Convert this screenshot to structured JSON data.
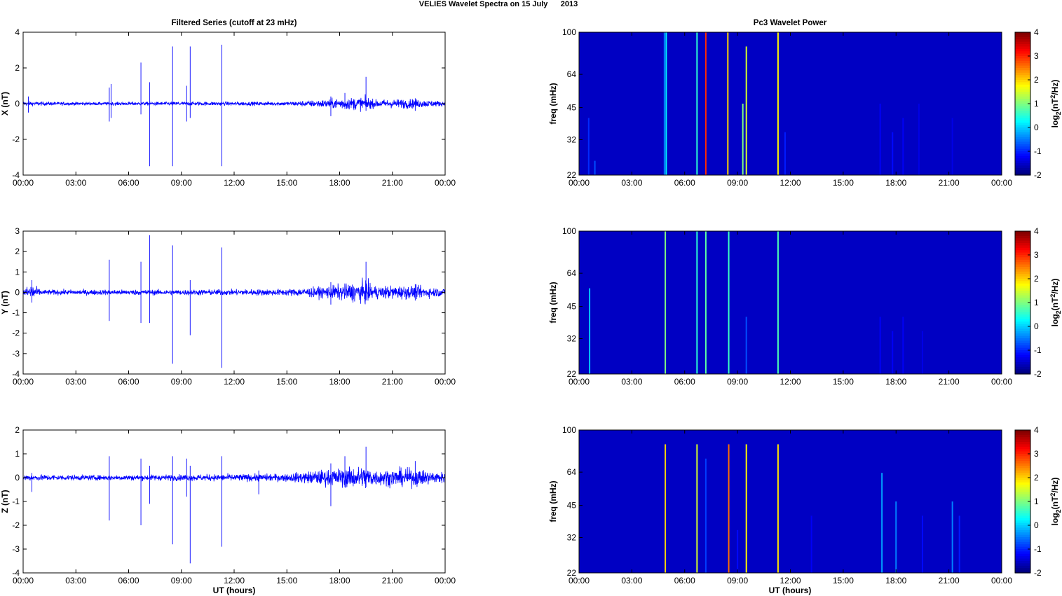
{
  "figure": {
    "title": "VELIES Wavelet Spectra on 15 July      2013",
    "left_title": "Filtered Series (cutoff at 23 mHz)",
    "right_title": "Pc3 Wavelet Power",
    "xlabel": "UT (hours)"
  },
  "chart_data": [
    {
      "type": "line",
      "ylabel": "X (nT)",
      "xlim": [
        0,
        24
      ],
      "ylim": [
        -4,
        4
      ],
      "yticks": [
        -4,
        -2,
        0,
        2,
        4
      ],
      "xticks": [
        "00:00",
        "03:00",
        "06:00",
        "09:00",
        "12:00",
        "15:00",
        "18:00",
        "21:00",
        "00:00"
      ],
      "series_color": "#0000ff",
      "noise_envelope": [
        [
          0,
          0.12
        ],
        [
          1,
          0.1
        ],
        [
          4,
          0.08
        ],
        [
          9,
          0.1
        ],
        [
          15,
          0.1
        ],
        [
          17,
          0.2
        ],
        [
          18,
          0.28
        ],
        [
          19.5,
          0.35
        ],
        [
          20,
          0.2
        ],
        [
          22,
          0.25
        ],
        [
          23,
          0.18
        ],
        [
          24,
          0.12
        ]
      ],
      "spikes": [
        [
          0.3,
          0.4,
          -0.5
        ],
        [
          4.9,
          0.9,
          -1.0
        ],
        [
          5.0,
          1.1,
          -0.8
        ],
        [
          6.7,
          2.3,
          -0.6
        ],
        [
          7.2,
          1.2,
          -3.5
        ],
        [
          8.5,
          3.2,
          -3.5
        ],
        [
          9.3,
          1.0,
          -1.0
        ],
        [
          9.5,
          3.2,
          -0.8
        ],
        [
          11.3,
          3.3,
          -3.5
        ],
        [
          17.5,
          0.4,
          -0.7
        ],
        [
          18.3,
          0.6,
          -0.3
        ],
        [
          19.5,
          1.5,
          -0.4
        ],
        [
          22.3,
          0.3,
          -0.4
        ]
      ]
    },
    {
      "type": "line",
      "ylabel": "Y (nT)",
      "xlim": [
        0,
        24
      ],
      "ylim": [
        -4,
        3
      ],
      "yticks": [
        -4,
        -3,
        -2,
        -1,
        0,
        1,
        2,
        3
      ],
      "xticks": [
        "00:00",
        "03:00",
        "06:00",
        "09:00",
        "12:00",
        "15:00",
        "18:00",
        "21:00",
        "00:00"
      ],
      "series_color": "#0000ff",
      "noise_envelope": [
        [
          0,
          0.15
        ],
        [
          0.5,
          0.4
        ],
        [
          1,
          0.12
        ],
        [
          9,
          0.12
        ],
        [
          15,
          0.15
        ],
        [
          17,
          0.25
        ],
        [
          18,
          0.35
        ],
        [
          19.5,
          0.5
        ],
        [
          20,
          0.3
        ],
        [
          22,
          0.3
        ],
        [
          24,
          0.18
        ]
      ],
      "spikes": [
        [
          0.5,
          0.6,
          -0.5
        ],
        [
          4.9,
          1.6,
          -1.4
        ],
        [
          6.7,
          1.5,
          -1.5
        ],
        [
          7.2,
          2.8,
          -1.5
        ],
        [
          8.5,
          2.3,
          -3.5
        ],
        [
          9.5,
          0.6,
          -2.1
        ],
        [
          11.3,
          2.2,
          -3.7
        ],
        [
          17.5,
          0.5,
          -0.6
        ],
        [
          19.5,
          1.5,
          -0.4
        ],
        [
          22.3,
          0.4,
          -0.4
        ]
      ]
    },
    {
      "type": "line",
      "ylabel": "Z (nT)",
      "xlim": [
        0,
        24
      ],
      "ylim": [
        -4,
        2
      ],
      "yticks": [
        -4,
        -3,
        -2,
        -1,
        0,
        1,
        2
      ],
      "xticks": [
        "00:00",
        "03:00",
        "06:00",
        "09:00",
        "12:00",
        "15:00",
        "18:00",
        "21:00",
        "00:00"
      ],
      "series_color": "#0000ff",
      "noise_envelope": [
        [
          0,
          0.12
        ],
        [
          4,
          0.1
        ],
        [
          9,
          0.12
        ],
        [
          15,
          0.15
        ],
        [
          17,
          0.3
        ],
        [
          18,
          0.35
        ],
        [
          19.5,
          0.45
        ],
        [
          20,
          0.3
        ],
        [
          22,
          0.35
        ],
        [
          24,
          0.2
        ]
      ],
      "spikes": [
        [
          0.5,
          0.2,
          -0.6
        ],
        [
          4.9,
          0.9,
          -1.8
        ],
        [
          6.7,
          0.8,
          -2.0
        ],
        [
          7.2,
          0.5,
          -1.1
        ],
        [
          8.5,
          0.9,
          -2.8
        ],
        [
          9.3,
          0.8,
          -0.8
        ],
        [
          9.5,
          0.5,
          -3.6
        ],
        [
          11.3,
          0.9,
          -2.9
        ],
        [
          13.4,
          0.3,
          -0.7
        ],
        [
          17.5,
          0.6,
          -1.2
        ],
        [
          18.3,
          0.9,
          -0.4
        ],
        [
          19.5,
          1.3,
          -0.4
        ],
        [
          22.3,
          0.7,
          -0.3
        ]
      ]
    },
    {
      "type": "heatmap",
      "ylabel": "freq (mHz)",
      "xlim": [
        0,
        24
      ],
      "ylim": [
        22,
        100
      ],
      "yscale": "log",
      "yticks": [
        22,
        32,
        45,
        64,
        100
      ],
      "xticks": [
        "00:00",
        "03:00",
        "06:00",
        "09:00",
        "12:00",
        "15:00",
        "18:00",
        "21:00",
        "00:00"
      ],
      "colorbar": {
        "label": "log2(nT^2/Hz)",
        "ticks": [
          -2,
          -1,
          0,
          1,
          2,
          3,
          4
        ],
        "range": [
          -2,
          4
        ]
      },
      "background_level": -1.6,
      "bursts": [
        [
          0.55,
          0.4,
          -1.0
        ],
        [
          0.9,
          0.1,
          -0.8
        ],
        [
          4.85,
          1.0,
          -0.5
        ],
        [
          4.95,
          1.0,
          0.2
        ],
        [
          6.7,
          1.0,
          0.5
        ],
        [
          7.2,
          1.0,
          3.0
        ],
        [
          8.45,
          1.0,
          2.0
        ],
        [
          9.3,
          0.5,
          1.0
        ],
        [
          9.5,
          0.9,
          1.5
        ],
        [
          11.3,
          1.0,
          1.8
        ],
        [
          11.7,
          0.3,
          -1.1
        ],
        [
          17.1,
          0.5,
          -1.3
        ],
        [
          17.8,
          0.3,
          -1.2
        ],
        [
          18.4,
          0.4,
          -1.3
        ],
        [
          19.3,
          0.5,
          -1.4
        ],
        [
          21.2,
          0.4,
          -1.4
        ]
      ]
    },
    {
      "type": "heatmap",
      "ylabel": "freq (mHz)",
      "xlim": [
        0,
        24
      ],
      "ylim": [
        22,
        100
      ],
      "yscale": "log",
      "yticks": [
        22,
        32,
        45,
        64,
        100
      ],
      "xticks": [
        "00:00",
        "03:00",
        "06:00",
        "09:00",
        "12:00",
        "15:00",
        "18:00",
        "21:00",
        "00:00"
      ],
      "colorbar": {
        "label": "log2(nT^2/Hz)",
        "ticks": [
          -2,
          -1,
          0,
          1,
          2,
          3,
          4
        ],
        "range": [
          -2,
          4
        ]
      },
      "background_level": -1.6,
      "bursts": [
        [
          0.6,
          0.6,
          -0.1
        ],
        [
          4.9,
          1.0,
          1.0
        ],
        [
          6.7,
          1.0,
          0.5
        ],
        [
          7.2,
          1.0,
          0.8
        ],
        [
          8.5,
          1.0,
          0.6
        ],
        [
          9.5,
          0.4,
          -0.8
        ],
        [
          11.3,
          1.0,
          0.7
        ],
        [
          17.1,
          0.4,
          -1.3
        ],
        [
          17.8,
          0.3,
          -1.3
        ],
        [
          18.4,
          0.4,
          -1.3
        ],
        [
          19.5,
          0.3,
          -1.4
        ]
      ]
    },
    {
      "type": "heatmap",
      "ylabel": "freq (mHz)",
      "xlim": [
        0,
        24
      ],
      "ylim": [
        22,
        100
      ],
      "yscale": "log",
      "yticks": [
        22,
        32,
        45,
        64,
        100
      ],
      "xticks": [
        "00:00",
        "03:00",
        "06:00",
        "09:00",
        "12:00",
        "15:00",
        "18:00",
        "21:00",
        "00:00"
      ],
      "colorbar": {
        "label": "log2(nT^2/Hz)",
        "ticks": [
          -2,
          -1,
          0,
          1,
          2,
          3,
          4
        ],
        "range": [
          -2,
          4
        ]
      },
      "background_level": -1.6,
      "bursts": [
        [
          4.9,
          0.9,
          2.0
        ],
        [
          6.7,
          0.9,
          1.5
        ],
        [
          7.2,
          0.8,
          -0.9
        ],
        [
          8.5,
          0.9,
          2.6
        ],
        [
          9.0,
          0.3,
          -1.2
        ],
        [
          9.5,
          0.9,
          1.8
        ],
        [
          11.3,
          0.9,
          1.9
        ],
        [
          13.2,
          0.4,
          -1.3
        ],
        [
          17.2,
          0.7,
          -0.3
        ],
        [
          18.0,
          0.5,
          -0.5
        ],
        [
          19.5,
          0.4,
          -1.2
        ],
        [
          21.2,
          0.5,
          -0.5
        ],
        [
          21.6,
          0.4,
          -1.1
        ]
      ]
    }
  ]
}
